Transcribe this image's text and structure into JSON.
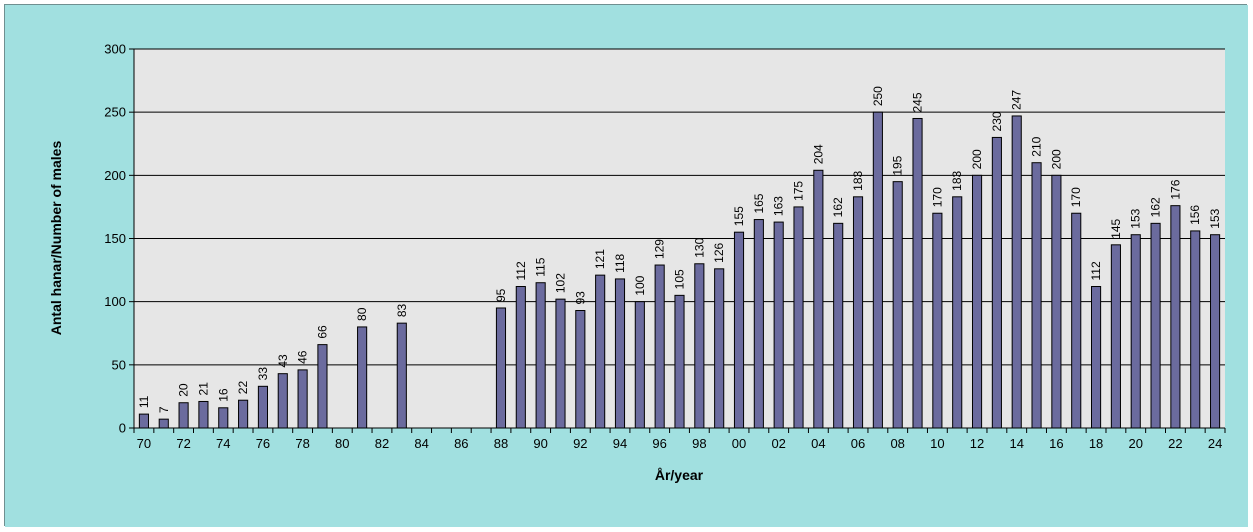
{
  "colors": {
    "outer_background": "#a1e0e0",
    "plot_background": "#e6e6e6",
    "bar_fill": "#6b6b9e",
    "bar_stroke": "#000000",
    "gridline": "#000000"
  },
  "chart_data": {
    "type": "bar",
    "title": "",
    "xlabel": "År/year",
    "ylabel": "Antal hanar/Number of males",
    "ylim": [
      0,
      300
    ],
    "yticks": [
      0,
      50,
      100,
      150,
      200,
      250,
      300
    ],
    "grid": true,
    "legend": "none",
    "xtick_labels": [
      "70",
      "72",
      "74",
      "76",
      "78",
      "80",
      "82",
      "84",
      "86",
      "88",
      "90",
      "92",
      "94",
      "96",
      "98",
      "00",
      "02",
      "04",
      "06",
      "08",
      "10",
      "12",
      "14",
      "16",
      "18",
      "20",
      "22",
      "24"
    ],
    "categories": [
      "1970",
      "1971",
      "1972",
      "1973",
      "1974",
      "1975",
      "1976",
      "1977",
      "1978",
      "1979",
      "1980",
      "1981",
      "1982",
      "1983",
      "1984",
      "1985",
      "1986",
      "1987",
      "1988",
      "1989",
      "1990",
      "1991",
      "1992",
      "1993",
      "1994",
      "1995",
      "1996",
      "1997",
      "1998",
      "1999",
      "2000",
      "2001",
      "2002",
      "2003",
      "2004",
      "2005",
      "2006",
      "2007",
      "2008",
      "2009",
      "2010",
      "2011",
      "2012",
      "2013",
      "2014",
      "2015",
      "2016",
      "2017",
      "2018",
      "2019",
      "2020",
      "2021",
      "2022",
      "2023",
      "2024"
    ],
    "values": [
      11,
      7,
      20,
      21,
      16,
      22,
      33,
      43,
      46,
      66,
      null,
      80,
      null,
      83,
      null,
      null,
      null,
      null,
      95,
      112,
      115,
      102,
      93,
      121,
      118,
      100,
      129,
      105,
      130,
      126,
      155,
      165,
      163,
      175,
      204,
      162,
      183,
      250,
      195,
      245,
      170,
      183,
      200,
      230,
      247,
      210,
      200,
      170,
      112,
      145,
      153,
      162,
      176,
      156,
      153
    ]
  }
}
